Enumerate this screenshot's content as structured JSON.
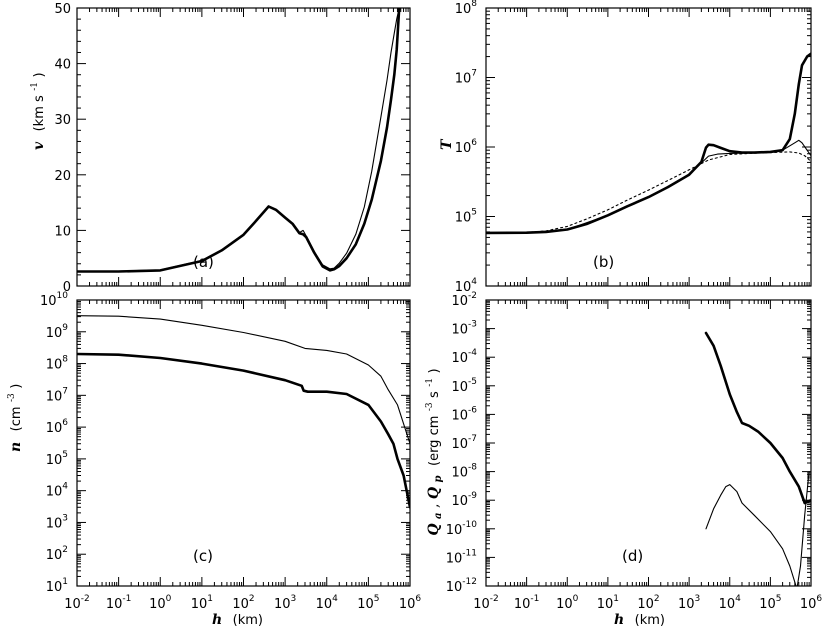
{
  "chart_data": [
    {
      "panel_label": "(a)",
      "type": "line",
      "ylabel": {
        "main": "v",
        "unit": "(km s",
        "exp": "-1",
        "close": ")"
      },
      "xlabel": "",
      "xscale": "log",
      "xlim": [
        0.01,
        1000000
      ],
      "ylim": [
        0,
        50
      ],
      "yticks": [
        0,
        10,
        20,
        30,
        40,
        50
      ],
      "series": [
        {
          "style": "thin",
          "x": [
            0.01,
            0.1,
            1,
            10,
            30,
            100,
            200,
            400,
            600,
            1000,
            1500,
            2200,
            2700,
            3200,
            5000,
            8000,
            12000,
            15000,
            20000,
            30000,
            50000,
            80000,
            120000,
            200000,
            280000,
            350000,
            420000,
            480000,
            550000
          ],
          "y": [
            2.7,
            2.7,
            2.9,
            4.6,
            6.5,
            9.3,
            11.8,
            14.4,
            13.8,
            12.4,
            11.3,
            9.6,
            10.0,
            9.0,
            6.2,
            3.8,
            3.1,
            3.2,
            4.1,
            5.9,
            9.3,
            14.2,
            20.6,
            30.4,
            37.0,
            42.0,
            45.5,
            48.0,
            50.0
          ]
        },
        {
          "style": "thick",
          "x": [
            0.01,
            0.1,
            1,
            10,
            30,
            100,
            200,
            400,
            600,
            1000,
            1500,
            2200,
            2700,
            3200,
            5000,
            8000,
            12000,
            15000,
            20000,
            30000,
            50000,
            80000,
            120000,
            200000,
            280000,
            350000,
            420000,
            480000,
            550000
          ],
          "y": [
            2.6,
            2.6,
            2.8,
            4.5,
            6.4,
            9.2,
            11.7,
            14.3,
            13.7,
            12.3,
            11.2,
            9.5,
            9.3,
            8.8,
            6.0,
            3.5,
            2.8,
            3.0,
            3.6,
            5.0,
            7.5,
            11.2,
            15.5,
            22.5,
            28.5,
            33.5,
            38.0,
            42.5,
            50.0
          ]
        }
      ]
    },
    {
      "panel_label": "(b)",
      "type": "line",
      "ylabel": {
        "main": "T"
      },
      "xlabel": "",
      "xscale": "log",
      "yscale": "log",
      "xlim": [
        0.01,
        1000000
      ],
      "ylim": [
        10000,
        100000000
      ],
      "series": [
        {
          "style": "thick",
          "x": [
            0.01,
            0.1,
            0.3,
            1,
            3,
            10,
            30,
            100,
            300,
            1000,
            2000,
            2600,
            3000,
            4000,
            6000,
            10000,
            20000,
            40000,
            100000,
            200000,
            300000,
            400000,
            500000,
            600000,
            800000,
            1000000
          ],
          "y": [
            58000,
            58500,
            60000,
            65000,
            78000,
            104000,
            140000,
            190000,
            265000,
            400000,
            610000,
            980000,
            1080000,
            1060000,
            970000,
            870000,
            830000,
            830000,
            850000,
            900000,
            1300000,
            3000000,
            8000000,
            15000000,
            20000000,
            22000000
          ]
        },
        {
          "style": "thin",
          "x": [
            0.01,
            0.1,
            1,
            10,
            100,
            1000,
            3000,
            5000,
            10000,
            30000,
            100000,
            200000,
            400000,
            500000,
            600000,
            800000,
            1000000
          ],
          "y": [
            58000,
            58500,
            65000,
            104000,
            190000,
            400000,
            740000,
            790000,
            810000,
            820000,
            850000,
            900000,
            1150000,
            1250000,
            1150000,
            900000,
            750000
          ]
        },
        {
          "style": "dotted",
          "x": [
            0.01,
            0.1,
            0.3,
            1,
            3,
            10,
            30,
            100,
            300,
            1000,
            3000,
            10000,
            30000,
            100000,
            300000,
            500000,
            700000,
            1000000
          ],
          "y": [
            58000,
            59000,
            62000,
            72000,
            92000,
            125000,
            172000,
            240000,
            330000,
            470000,
            650000,
            780000,
            810000,
            830000,
            850000,
            820000,
            750000,
            620000
          ]
        }
      ]
    },
    {
      "panel_label": "(c)",
      "type": "line",
      "ylabel": {
        "main": "n",
        "unit": "(cm",
        "exp": "-3",
        "close": ")"
      },
      "xlabel": {
        "main": "h",
        "unit": "(km)"
      },
      "xscale": "log",
      "yscale": "log",
      "xlim": [
        0.01,
        1000000
      ],
      "ylim": [
        10,
        10000000000
      ],
      "series": [
        {
          "style": "thin",
          "x": [
            0.01,
            0.1,
            1,
            10,
            100,
            1000,
            3000,
            10000,
            30000,
            100000,
            200000,
            300000,
            500000,
            1000000
          ],
          "y": [
            3200000000,
            3100000000,
            2500000000,
            1600000000,
            950000000,
            500000000,
            300000000,
            260000000,
            200000000,
            90000000,
            40000000,
            15000000,
            5000000,
            300000
          ]
        },
        {
          "style": "thick",
          "x": [
            0.01,
            0.1,
            1,
            10,
            100,
            1000,
            2500,
            2800,
            3500,
            10000,
            30000,
            100000,
            200000,
            300000,
            400000,
            500000,
            700000,
            1000000
          ],
          "y": [
            200000000,
            190000000,
            150000000,
            100000000,
            60000000,
            30000000,
            20000000,
            14000000,
            13000000,
            13000000,
            11000000,
            5000000,
            1500000,
            600000,
            300000,
            100000,
            30000,
            3000
          ]
        }
      ]
    },
    {
      "panel_label": "(d)",
      "type": "line",
      "ylabel": {
        "q1": "Q",
        "s1": "a",
        "sep": ", ",
        "q2": "Q",
        "s2": "p",
        "unit": "(erg cm",
        "exp1": "-3",
        "mid": " s",
        "exp2": "-1",
        "close": ")"
      },
      "xlabel": {
        "main": "h",
        "unit": "(km)"
      },
      "xscale": "log",
      "yscale": "log",
      "xlim": [
        0.01,
        1000000
      ],
      "ylim": [
        1e-12,
        0.01
      ],
      "series": [
        {
          "style": "thick",
          "x": [
            2600,
            4000,
            6000,
            10000,
            15000,
            20000,
            30000,
            50000,
            100000,
            200000,
            300000,
            500000,
            700000,
            1000000
          ],
          "y": [
            0.0007,
            0.00025,
            5e-05,
            5e-06,
            1.2e-06,
            5e-07,
            4e-07,
            2.5e-07,
            1e-07,
            3e-08,
            1e-08,
            3e-09,
            8e-10,
            1e-09
          ]
        },
        {
          "style": "thin",
          "x": [
            2600,
            4000,
            6000,
            8000,
            10000,
            15000,
            20000,
            40000,
            100000,
            200000,
            300000,
            450000,
            550000,
            700000,
            900000
          ],
          "y": [
            1e-10,
            5e-10,
            1.5e-09,
            3e-09,
            3.5e-09,
            2e-09,
            8e-10,
            3e-10,
            8e-11,
            2e-11,
            5e-12,
            8e-13,
            5e-12,
            3e-10,
            1e-08
          ]
        }
      ]
    }
  ]
}
